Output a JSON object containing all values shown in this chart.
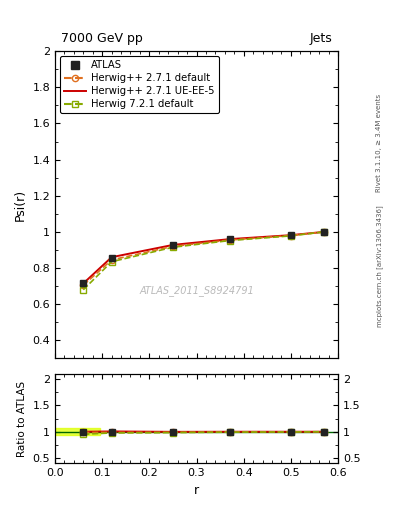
{
  "title_left": "7000 GeV pp",
  "title_right": "Jets",
  "ylabel_main": "Psi(r)",
  "ylabel_ratio": "Ratio to ATLAS",
  "xlabel": "r",
  "right_label": "Rivet 3.1.10, ≥ 3.4M events",
  "right_label2": "mcplots.cern.ch [arXiv:1306.3436]",
  "watermark": "ATLAS_2011_S8924791",
  "ylim_main": [
    0.3,
    2.0
  ],
  "ylim_ratio": [
    0.4,
    2.1
  ],
  "xlim": [
    0.0,
    0.6
  ],
  "yticks_main": [
    0.4,
    0.6,
    0.8,
    1.0,
    1.2,
    1.4,
    1.6,
    1.8,
    2.0
  ],
  "yticks_ratio": [
    0.5,
    1.0,
    1.5,
    2.0
  ],
  "data_x": [
    0.06,
    0.12,
    0.25,
    0.37,
    0.5,
    0.57
  ],
  "data_y_atlas": [
    0.715,
    0.855,
    0.93,
    0.96,
    0.982,
    1.0
  ],
  "data_y_herwig_default": [
    0.705,
    0.845,
    0.92,
    0.955,
    0.98,
    1.0
  ],
  "data_y_herwig_ueee5": [
    0.715,
    0.86,
    0.928,
    0.96,
    0.982,
    1.0
  ],
  "data_y_herwig721": [
    0.68,
    0.835,
    0.915,
    0.952,
    0.978,
    1.0
  ],
  "ratio_herwig_default": [
    0.986,
    0.988,
    0.989,
    0.995,
    0.998,
    1.0
  ],
  "ratio_herwig_ueee5": [
    1.0,
    1.006,
    0.998,
    1.0,
    1.0,
    1.0
  ],
  "ratio_herwig721": [
    0.952,
    0.977,
    0.984,
    0.992,
    0.996,
    1.0
  ],
  "color_atlas": "#222222",
  "color_herwig_default": "#e07020",
  "color_herwig_ueee5": "#cc0000",
  "color_herwig721": "#88aa00",
  "atlas_error_y": [
    0.012,
    0.006,
    0.005,
    0.005,
    0.003,
    0.002
  ],
  "atlas_error_ratio": [
    0.017,
    0.007,
    0.005,
    0.005,
    0.003,
    0.002
  ],
  "band_color": "#ddff00"
}
